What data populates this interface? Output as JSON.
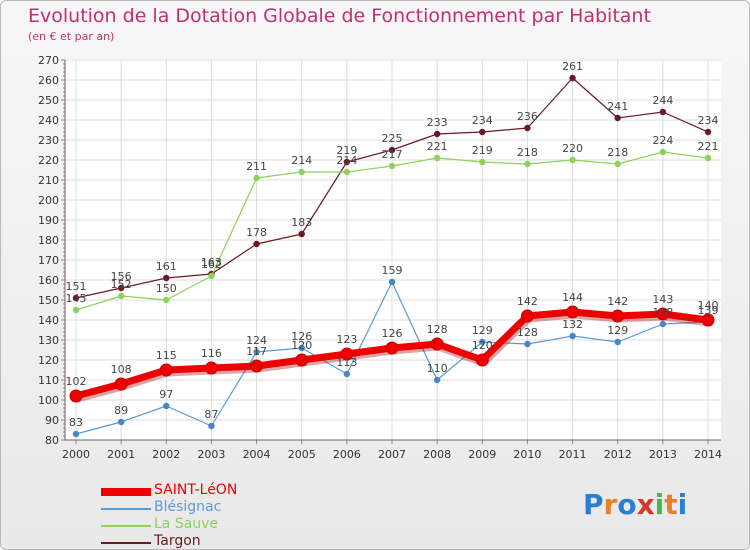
{
  "title": "Evolution de la Dotation Globale de Fonctionnement par Habitant",
  "subtitle": "(en € et par an)",
  "brand": {
    "text": "Proxiti",
    "letters": [
      "P",
      "r",
      "o",
      "x",
      "i",
      "t",
      "i"
    ],
    "colors": [
      "#2a7fd4",
      "#e8822a",
      "#2a7fd4",
      "#d43a2a",
      "#45b649",
      "#e8822a",
      "#2a7fd4"
    ]
  },
  "chart_data": {
    "type": "line",
    "title": "Evolution de la Dotation Globale de Fonctionnement par Habitant",
    "subtitle": "(en € et par an)",
    "xlabel": "",
    "ylabel": "",
    "x": [
      "2000",
      "2001",
      "2002",
      "2003",
      "2004",
      "2005",
      "2006",
      "2007",
      "2008",
      "2009",
      "2010",
      "2011",
      "2012",
      "2013",
      "2014"
    ],
    "ylim": [
      80,
      270
    ],
    "yticks": [
      80,
      90,
      100,
      110,
      120,
      130,
      140,
      150,
      160,
      170,
      180,
      190,
      200,
      210,
      220,
      230,
      240,
      250,
      260,
      270
    ],
    "grid": true,
    "legend_position": "bottom-left",
    "series": [
      {
        "name": "Targon",
        "color": "#6b1a22",
        "marker": "#6b1a22",
        "width": 1.2,
        "values": [
          151,
          156,
          161,
          163,
          178,
          183,
          219,
          225,
          233,
          234,
          236,
          261,
          241,
          244,
          234
        ]
      },
      {
        "name": "La Sauve",
        "color": "#8fd15a",
        "marker": "#8fd15a",
        "width": 1.2,
        "values": [
          145,
          152,
          150,
          162,
          211,
          214,
          214,
          217,
          221,
          219,
          218,
          220,
          218,
          224,
          221
        ]
      },
      {
        "name": "Blésignac",
        "color": "#5b9bd5",
        "marker": "#4a86c5",
        "width": 1.2,
        "values": [
          83,
          89,
          97,
          87,
          124,
          126,
          113,
          159,
          110,
          129,
          128,
          132,
          129,
          138,
          139
        ]
      },
      {
        "name": "SAINT-LéON",
        "color": "#ee0000",
        "marker": "#ee0000",
        "width": 7,
        "values": [
          102,
          108,
          115,
          116,
          117,
          120,
          123,
          126,
          128,
          120,
          142,
          144,
          142,
          143,
          140
        ]
      }
    ],
    "data_labels": [
      {
        "series": "Targon",
        "labels": [
          "151",
          "156",
          "161",
          "163",
          "178",
          "183",
          "219",
          "225",
          "233",
          "234",
          "236",
          "261",
          "241",
          "244",
          "234"
        ]
      },
      {
        "series": "La Sauve",
        "labels": [
          "145",
          "152",
          "150",
          "162",
          "211",
          "214",
          "214",
          "217",
          "221",
          "219",
          "218",
          "220",
          "218",
          "224",
          "221"
        ]
      },
      {
        "series": "Blésignac",
        "labels": [
          "83",
          "89",
          "97",
          "87",
          "124",
          "126",
          "113",
          "159",
          "110",
          "129",
          "128",
          "132",
          "129",
          "138",
          "139"
        ]
      },
      {
        "series": "SAINT-LéON",
        "labels": [
          "102",
          "108",
          "115",
          "116",
          "117",
          "120",
          "123",
          "126",
          "128",
          "120",
          "142",
          "144",
          "142",
          "143",
          "140"
        ]
      }
    ],
    "legend": [
      {
        "label": "SAINT-LéON",
        "color": "#ee0000",
        "thick": true
      },
      {
        "label": "Blésignac",
        "color": "#5b9bd5",
        "thick": false
      },
      {
        "label": "La Sauve",
        "color": "#8fd15a",
        "thick": false
      },
      {
        "label": "Targon",
        "color": "#6b1a22",
        "thick": false
      }
    ]
  }
}
